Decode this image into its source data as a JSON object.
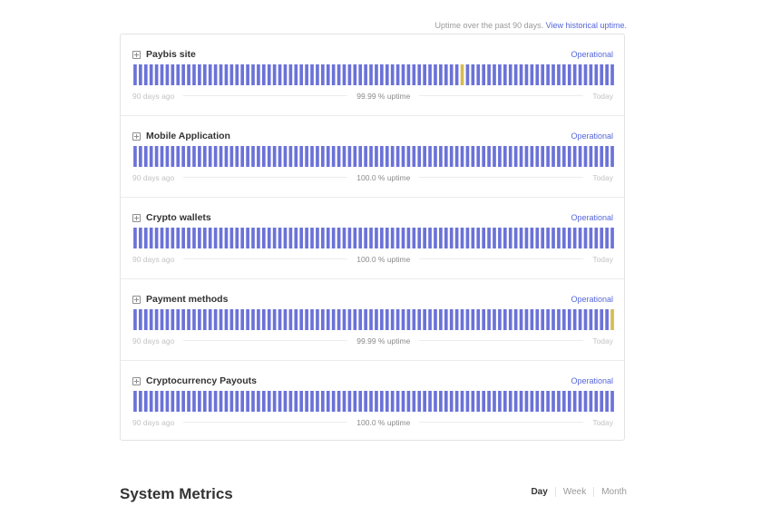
{
  "header": {
    "note_text": "Uptime over the past 90 days.",
    "note_link": "View historical uptime."
  },
  "colors": {
    "operational": "#6b72d8",
    "incident": "#d6bc50",
    "accent": "#5567d9"
  },
  "components": [
    {
      "name": "Paybis site",
      "status": "Operational",
      "start_label": "90 days ago",
      "uptime": "99.99 % uptime",
      "end_label": "Today",
      "incident_days": [
        61
      ]
    },
    {
      "name": "Mobile Application",
      "status": "Operational",
      "start_label": "90 days ago",
      "uptime": "100.0 % uptime",
      "end_label": "Today",
      "incident_days": []
    },
    {
      "name": "Crypto wallets",
      "status": "Operational",
      "start_label": "90 days ago",
      "uptime": "100.0 % uptime",
      "end_label": "Today",
      "incident_days": []
    },
    {
      "name": "Payment methods",
      "status": "Operational",
      "start_label": "90 days ago",
      "uptime": "99.99 % uptime",
      "end_label": "Today",
      "incident_days": [
        89
      ]
    },
    {
      "name": "Cryptocurrency Payouts",
      "status": "Operational",
      "start_label": "90 days ago",
      "uptime": "100.0 % uptime",
      "end_label": "Today",
      "incident_days": []
    }
  ],
  "metrics": {
    "title": "System Metrics",
    "tabs": [
      "Day",
      "Week",
      "Month"
    ],
    "active_tab": "Day"
  }
}
